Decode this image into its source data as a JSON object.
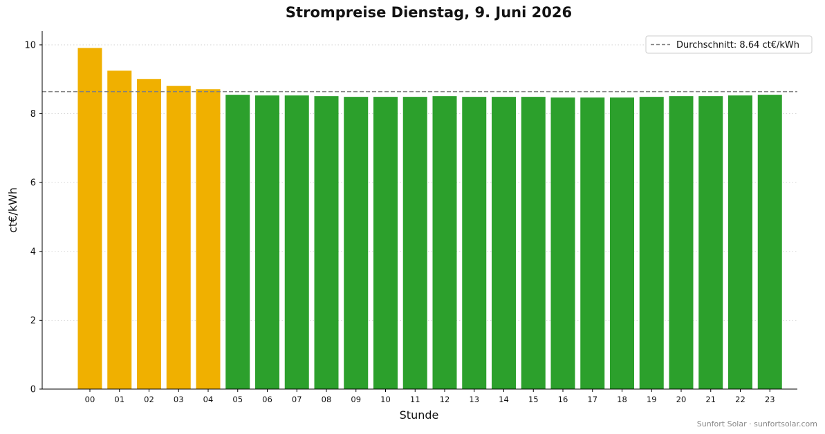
{
  "chart_data": {
    "type": "bar",
    "title": "Strompreise Dienstag, 9. Juni 2026",
    "xlabel": "Stunde",
    "ylabel": "ct€/kWh",
    "ylim": [
      0,
      10.4
    ],
    "yticks": [
      0,
      2,
      4,
      6,
      8,
      10
    ],
    "categories": [
      "00",
      "01",
      "02",
      "03",
      "04",
      "05",
      "06",
      "07",
      "08",
      "09",
      "10",
      "11",
      "12",
      "13",
      "14",
      "15",
      "16",
      "17",
      "18",
      "19",
      "20",
      "21",
      "22",
      "23"
    ],
    "values": [
      9.91,
      9.25,
      9.01,
      8.81,
      8.71,
      8.55,
      8.53,
      8.53,
      8.51,
      8.49,
      8.49,
      8.49,
      8.51,
      8.49,
      8.49,
      8.49,
      8.47,
      8.47,
      8.47,
      8.49,
      8.51,
      8.51,
      8.53,
      8.55
    ],
    "above_average_color": "#f0b000",
    "below_average_color": "#2ca02c",
    "average": {
      "value": 8.64,
      "label": "Durchschnitt: 8.64 ct€/kWh",
      "color": "#808080",
      "style": "dashed"
    },
    "legend_position": "top-right",
    "grid": "horizontal dotted"
  },
  "footer": "Sunfort Solar · sunfortsolar.com"
}
